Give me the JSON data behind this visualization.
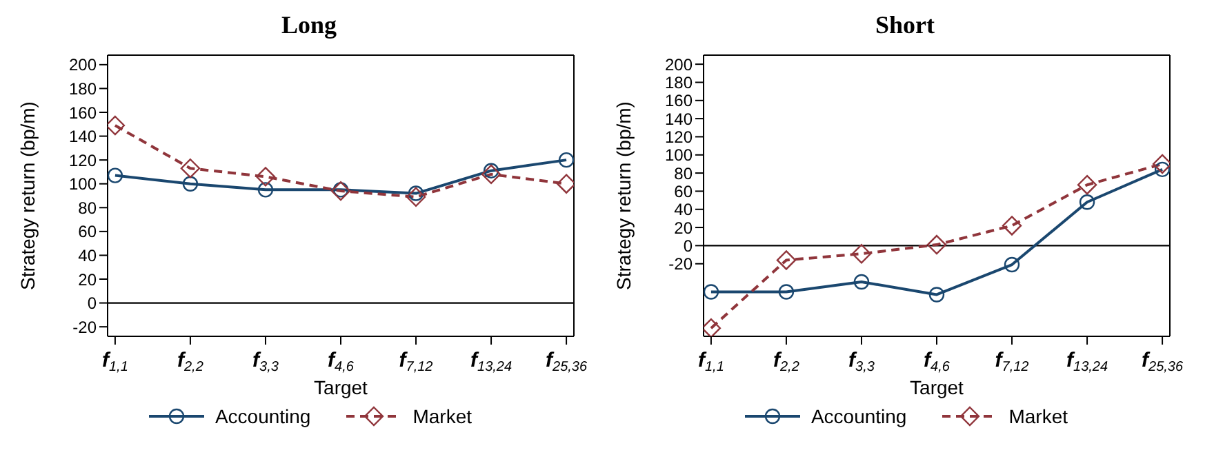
{
  "chart_data": [
    {
      "type": "line",
      "title": "Long",
      "xlabel": "Target",
      "ylabel": "Strategy return (bp/m)",
      "categories": [
        "f$_{1,1}$",
        "f$_{2,2}$",
        "f$_{3,3}$",
        "f$_{4,6}$",
        "f$_{7,12}$",
        "f$_{13,24}$",
        "f$_{25,36}$"
      ],
      "series": [
        {
          "name": "Accounting",
          "color": "#1a476f",
          "marker": "circle",
          "line_style": "solid",
          "values": [
            107,
            100,
            95,
            95,
            92,
            111,
            120
          ]
        },
        {
          "name": "Market",
          "color": "#90353b",
          "marker": "diamond",
          "line_style": "dashed",
          "values": [
            149,
            113,
            106,
            94,
            89,
            108,
            100
          ]
        }
      ],
      "ylim": [
        -28,
        208
      ],
      "yticks": [
        -20,
        0,
        20,
        40,
        60,
        80,
        100,
        120,
        140,
        160,
        180,
        200
      ],
      "grid": false,
      "legend": "bottom",
      "ref_lines": [
        {
          "axis": "y",
          "value": 0,
          "color": "#000000"
        }
      ]
    },
    {
      "type": "line",
      "title": "Short",
      "xlabel": "Target",
      "ylabel": "Strategy return (bp/m)",
      "categories": [
        "f$_{1,1}$",
        "f$_{2,2}$",
        "f$_{3,3}$",
        "f$_{4,6}$",
        "f$_{7,12}$",
        "f$_{13,24}$",
        "f$_{25,36}$"
      ],
      "series": [
        {
          "name": "Accounting",
          "color": "#1a476f",
          "marker": "circle",
          "line_style": "solid",
          "values": [
            -51,
            -51,
            -40,
            -54,
            -21,
            48,
            84
          ]
        },
        {
          "name": "Market",
          "color": "#90353b",
          "marker": "diamond",
          "line_style": "dashed",
          "values": [
            -91,
            -16,
            -9,
            1,
            22,
            67,
            90
          ]
        }
      ],
      "ylim": [
        -100,
        210
      ],
      "yticks": [
        -20,
        0,
        20,
        40,
        60,
        80,
        100,
        120,
        140,
        160,
        180,
        200
      ],
      "grid": false,
      "legend": "bottom",
      "ref_lines": [
        {
          "axis": "y",
          "value": 0,
          "color": "#000000"
        }
      ]
    }
  ]
}
